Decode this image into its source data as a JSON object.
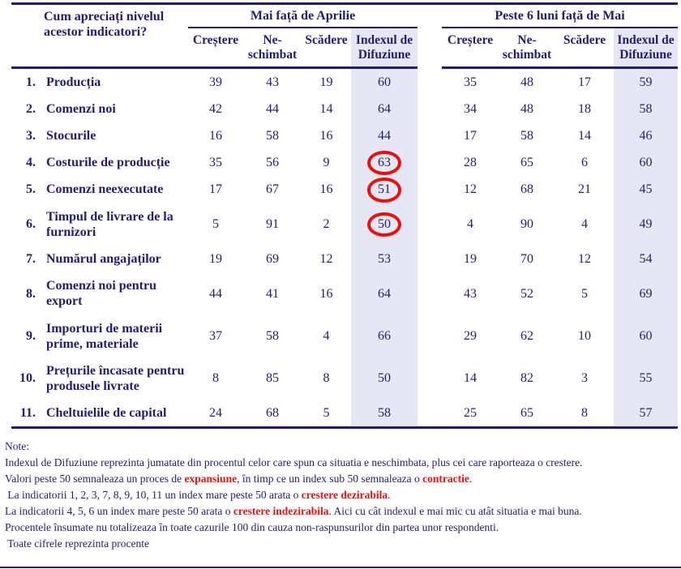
{
  "colors": {
    "navy": "#211e6e",
    "lavender": "#e6e6f4",
    "circle_red": "#e8100c",
    "note_red": "#e51212"
  },
  "header": {
    "question": "Cum apreciați nivelul acestor indicatori?",
    "group1_title": "Mai față de Aprilie",
    "group2_title": "Peste 6 luni față de Mai",
    "col_labels": [
      "Creștere",
      "Ne-schimbat",
      "Scădere",
      "Indexul de Difuziune"
    ]
  },
  "rows": [
    {
      "num": "1.",
      "indicator": "Producția",
      "g1": [
        39,
        43,
        19,
        60
      ],
      "g2": [
        35,
        48,
        17,
        59
      ],
      "circled_index": false
    },
    {
      "num": "2.",
      "indicator": "Comenzi noi",
      "g1": [
        42,
        44,
        14,
        64
      ],
      "g2": [
        34,
        48,
        18,
        58
      ],
      "circled_index": false
    },
    {
      "num": "3.",
      "indicator": "Stocurile",
      "g1": [
        16,
        58,
        16,
        44
      ],
      "g2": [
        17,
        58,
        14,
        46
      ],
      "circled_index": false
    },
    {
      "num": "4.",
      "indicator": "Costurile de producție",
      "g1": [
        35,
        56,
        9,
        63
      ],
      "g2": [
        28,
        65,
        6,
        60
      ],
      "circled_index": true
    },
    {
      "num": "5.",
      "indicator": "Comenzi neexecutate",
      "g1": [
        17,
        67,
        16,
        51
      ],
      "g2": [
        12,
        68,
        21,
        45
      ],
      "circled_index": true
    },
    {
      "num": "6.",
      "indicator": "Timpul de livrare de la furnizori",
      "g1": [
        5,
        91,
        2,
        50
      ],
      "g2": [
        4,
        90,
        4,
        49
      ],
      "circled_index": true
    },
    {
      "num": "7.",
      "indicator": "Numărul angajaților",
      "g1": [
        19,
        69,
        12,
        53
      ],
      "g2": [
        19,
        70,
        12,
        54
      ],
      "circled_index": false
    },
    {
      "num": "8.",
      "indicator": "Comenzi noi pentru export",
      "g1": [
        44,
        41,
        16,
        64
      ],
      "g2": [
        43,
        52,
        5,
        69
      ],
      "circled_index": false
    },
    {
      "num": "9.",
      "indicator": "Importuri de materii prime, materiale",
      "g1": [
        37,
        58,
        4,
        66
      ],
      "g2": [
        29,
        62,
        10,
        60
      ],
      "circled_index": false
    },
    {
      "num": "10.",
      "indicator": "Prețurile încasate pentru produsele livrate",
      "g1": [
        8,
        85,
        8,
        50
      ],
      "g2": [
        14,
        82,
        3,
        55
      ],
      "circled_index": false
    },
    {
      "num": "11.",
      "indicator": "Cheltuielile de capital",
      "g1": [
        24,
        68,
        5,
        58
      ],
      "g2": [
        25,
        65,
        8,
        57
      ],
      "circled_index": false
    }
  ],
  "notes": {
    "title": "Note:",
    "lines": [
      [
        {
          "text": "Indexul de Difuziune reprezinta jumatate din procentul celor care spun ca situatia e neschimbata, plus cei care raporteaza o crestere.",
          "red": false
        }
      ],
      [
        {
          "text": "Valori peste 50 semnaleaza un proces de ",
          "red": false
        },
        {
          "text": "expansiune",
          "red": true
        },
        {
          "text": ", în timp ce un index sub 50 semnaleaza o ",
          "red": false
        },
        {
          "text": "contractie",
          "red": true
        },
        {
          "text": ".",
          "red": false
        }
      ],
      [
        {
          "text": " La indicatorii 1, 2, 3, 7, 8, 9, 10, 11 un index mare peste 50 arata o ",
          "red": false
        },
        {
          "text": "crestere dezirabila",
          "red": true
        },
        {
          "text": ".",
          "red": false
        }
      ],
      [
        {
          "text": "La indicatorii 4, 5, 6 un index mare peste 50 arata o ",
          "red": false
        },
        {
          "text": "crestere indezirabila",
          "red": true
        },
        {
          "text": ". Aici cu cât indexul e mai mic cu atât situatia e mai buna.",
          "red": false
        }
      ],
      [
        {
          "text": "Procentele însumate nu totalizeaza în toate cazurile 100 din cauza non-raspunsurilor din partea unor respondenti.",
          "red": false
        }
      ],
      [
        {
          "text": " Toate cifrele reprezinta procente",
          "red": false
        }
      ]
    ]
  }
}
